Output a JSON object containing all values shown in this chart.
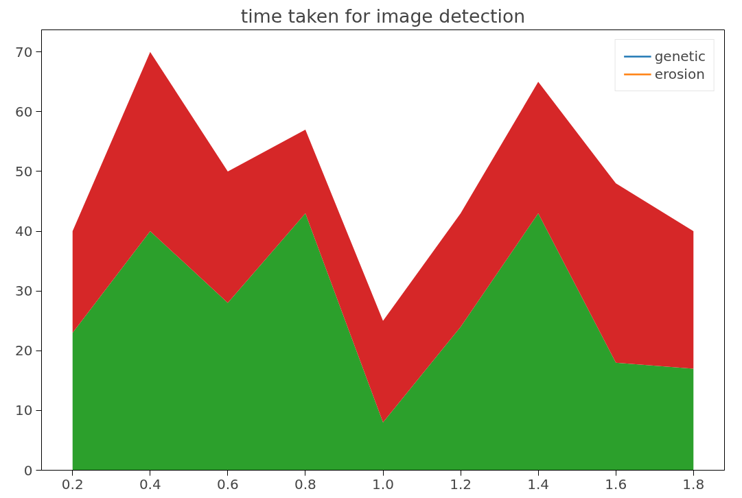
{
  "chart_data": {
    "type": "area",
    "title": "time taken for image detection",
    "stacked": true,
    "x": [
      0.2,
      0.4,
      0.6,
      0.8,
      1.0,
      1.2,
      1.4,
      1.6,
      1.8
    ],
    "series": [
      {
        "color": "#2ca02c",
        "values": [
          23,
          40,
          28,
          43,
          8,
          24,
          43,
          18,
          17
        ]
      },
      {
        "color": "#d62728",
        "values": [
          17,
          30,
          22,
          14,
          17,
          19,
          22,
          30,
          23
        ]
      },
      {
        "type": "line",
        "name": "genetic",
        "color": "#1f77b4",
        "values": [
          null,
          null,
          null,
          null,
          null,
          null,
          null,
          null,
          null
        ]
      },
      {
        "type": "line",
        "name": "erosion",
        "color": "#ff7f0e",
        "values": [
          null,
          null,
          null,
          null,
          null,
          null,
          null,
          null,
          null
        ]
      }
    ],
    "xlim": [
      0.12,
      1.88
    ],
    "ylim": [
      0,
      73.7
    ],
    "xticks": [
      {
        "value": 0.2,
        "label": "0.2"
      },
      {
        "value": 0.4,
        "label": "0.4"
      },
      {
        "value": 0.6,
        "label": "0.6"
      },
      {
        "value": 0.8,
        "label": "0.8"
      },
      {
        "value": 1.0,
        "label": "1.0"
      },
      {
        "value": 1.2,
        "label": "1.2"
      },
      {
        "value": 1.4,
        "label": "1.4"
      },
      {
        "value": 1.6,
        "label": "1.6"
      },
      {
        "value": 1.8,
        "label": "1.8"
      }
    ],
    "yticks": [
      0,
      10,
      20,
      30,
      40,
      50,
      60,
      70
    ],
    "grid": false,
    "legend": "top right"
  }
}
